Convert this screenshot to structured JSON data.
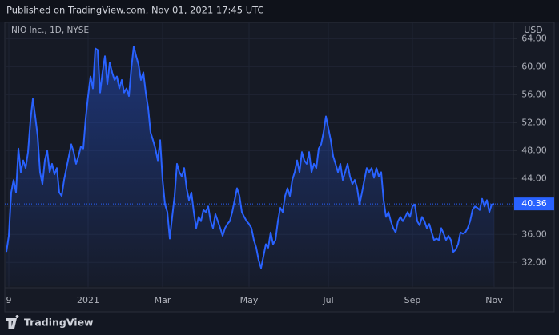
{
  "header": "Published on TradingView.com, Nov 01, 2021 17:45 UTC",
  "footer": "TradingView",
  "chart_data": {
    "type": "line",
    "title": "NIO Inc., 1D, NYSE",
    "y_axis_label": "USD",
    "grid": true,
    "categories": [
      null,
      "9",
      null,
      null,
      null,
      null,
      null,
      null,
      null,
      null,
      null,
      null,
      null,
      null,
      null,
      null,
      null,
      null,
      null,
      null,
      null,
      null,
      null,
      null,
      null,
      null,
      null,
      null,
      null,
      null,
      null,
      null,
      null,
      null,
      "2021",
      null,
      null,
      null,
      null,
      null,
      null,
      null,
      null,
      null,
      null,
      null,
      null,
      null,
      null,
      null,
      null,
      null,
      null,
      null,
      null,
      null,
      null,
      null,
      null,
      null,
      null,
      null,
      null,
      null,
      null,
      "Mar",
      null,
      null,
      null,
      null,
      null,
      null,
      null,
      null,
      null,
      null,
      null,
      null,
      null,
      null,
      null,
      null,
      null,
      null,
      null,
      null,
      null,
      null,
      null,
      null,
      null,
      null,
      null,
      null,
      null,
      null,
      null,
      null,
      null,
      null,
      null,
      "May",
      null,
      null,
      null,
      null,
      null,
      null,
      null,
      null,
      null,
      null,
      null,
      null,
      null,
      null,
      null,
      null,
      null,
      null,
      null,
      null,
      null,
      null,
      null,
      null,
      null,
      null,
      null,
      null,
      null,
      null,
      null,
      null,
      "Jul",
      null,
      null,
      null,
      null,
      null,
      null,
      null,
      null,
      null,
      null,
      null,
      null,
      null,
      null,
      null,
      null,
      null,
      null,
      null,
      null,
      null,
      null,
      null,
      null,
      null,
      null,
      null,
      null,
      null,
      null,
      null,
      null,
      null,
      null,
      "Sep",
      null,
      null,
      null,
      null,
      null,
      null,
      null,
      null,
      null,
      null,
      null,
      null,
      null,
      null,
      null,
      null,
      null,
      null,
      null,
      null,
      null,
      null,
      null,
      null,
      null,
      null,
      null,
      null,
      null,
      null,
      null,
      null,
      null,
      "Nov"
    ],
    "series": [
      {
        "name": "NIO",
        "color": "#2962ff",
        "values": [
          33.5,
          35.8,
          42.0,
          43.8,
          42,
          48.3,
          44.9,
          46.6,
          45.5,
          47.8,
          52.3,
          55.4,
          52.9,
          50.1,
          44.9,
          43.2,
          46.6,
          48.0,
          44.9,
          46.1,
          44.6,
          45.5,
          42,
          41.5,
          43.8,
          45.5,
          47.2,
          48.9,
          47.8,
          46.1,
          47.2,
          48.6,
          48.3,
          52.6,
          55.8,
          58.6,
          56.9,
          62.6,
          62.4,
          56.3,
          59.2,
          61.5,
          57.5,
          60.6,
          59.2,
          58.1,
          58.6,
          56.9,
          58.1,
          56.3,
          56.9,
          55.8,
          59.8,
          62.9,
          61.5,
          60.3,
          58.1,
          59.2,
          56.3,
          54.1,
          50.6,
          49.5,
          48.3,
          46.6,
          49.5,
          43.8,
          40.3,
          39.2,
          35.4,
          38.5,
          41.5,
          46.1,
          44.9,
          44.3,
          45.5,
          42.6,
          40.9,
          42.0,
          39.2,
          36.9,
          38.5,
          37.9,
          39.5,
          39.2,
          40.0,
          37.9,
          36.9,
          38.9,
          37.9,
          36.9,
          35.8,
          36.9,
          37.5,
          37.9,
          39.2,
          40.9,
          42.6,
          41.5,
          39.2,
          38.5,
          37.9,
          37.5,
          36.9,
          35.2,
          34.1,
          32.3,
          31.2,
          32.9,
          34.6,
          34.1,
          36.3,
          34.6,
          35.2,
          37.9,
          39.8,
          39.2,
          41.5,
          42.6,
          41.5,
          43.8,
          44.9,
          46.6,
          44.9,
          47.8,
          46.6,
          46.1,
          47.8,
          44.9,
          46.1,
          45.5,
          48.3,
          48.9,
          50.6,
          52.9,
          51.2,
          49.5,
          47.2,
          46.1,
          44.9,
          46.1,
          43.8,
          44.9,
          46.1,
          44.3,
          43.2,
          43.8,
          42.6,
          40.3,
          42.0,
          43.8,
          45.5,
          44.9,
          45.5,
          44.1,
          45.5,
          44.3,
          44.9,
          40.9,
          38.5,
          39.2,
          37.9,
          36.9,
          36.3,
          37.9,
          38.5,
          37.9,
          38.5,
          39.2,
          38.5,
          40.0,
          40.3,
          37.9,
          37.3,
          38.5,
          37.9,
          36.9,
          37.5,
          36.3,
          35.2,
          35.4,
          35.2,
          36.9,
          36.1,
          35.2,
          35.8,
          35.2,
          33.5,
          33.8,
          34.6,
          36.3,
          36.1,
          36.3,
          36.9,
          37.9,
          39.5,
          40.0,
          39.8,
          39.5,
          41.1,
          40.0,
          40.9,
          39.2,
          40.3,
          40.36
        ]
      }
    ],
    "ylim": [
      28.6,
      66.1
    ],
    "yticks": [
      {
        "value": 32,
        "label": "32.00"
      },
      {
        "value": 36,
        "label": "36.00"
      },
      {
        "value": 40,
        "label": "40.00"
      },
      {
        "value": 44,
        "label": "44.00"
      },
      {
        "value": 48,
        "label": "48.00"
      },
      {
        "value": 52,
        "label": "52.00"
      },
      {
        "value": 56,
        "label": "56.00"
      },
      {
        "value": 60,
        "label": "60.00"
      },
      {
        "value": 64,
        "label": "64.00"
      }
    ]
  }
}
